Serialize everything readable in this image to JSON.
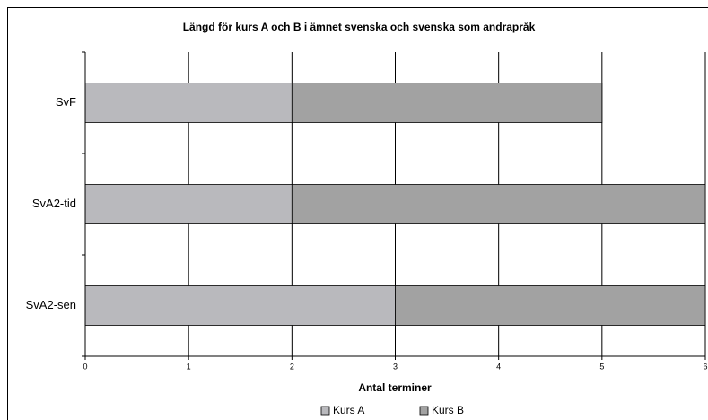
{
  "chart_data": {
    "type": "stacked-bar-horizontal",
    "title": "Längd för kurs A och B i ämnet svenska och svenska som andrapråk",
    "categories": [
      "SvF",
      "SvA2-tid",
      "SvA2-sen"
    ],
    "series": [
      {
        "name": "Kurs A",
        "color": "#b9b9bd",
        "values": [
          2,
          2,
          3
        ]
      },
      {
        "name": "Kurs B",
        "color": "#a2a2a2",
        "values": [
          3,
          4,
          3
        ]
      }
    ],
    "x_label": "Antal terminer",
    "xlim": [
      0,
      6
    ],
    "xticks": [
      0,
      1,
      2,
      3,
      4,
      5,
      6
    ],
    "grid": true,
    "legend": "bottom"
  }
}
